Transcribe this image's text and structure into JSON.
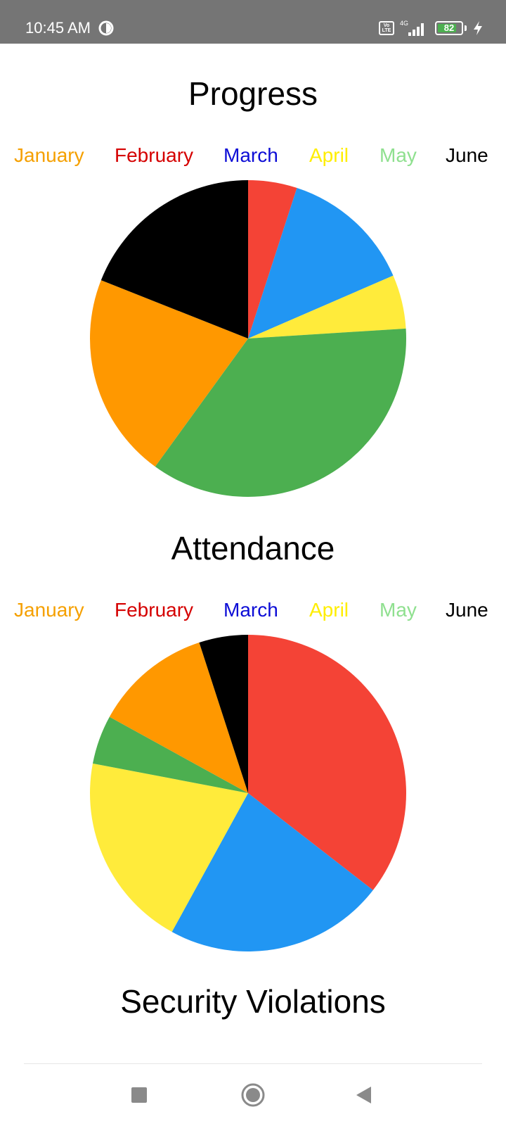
{
  "status_bar": {
    "time": "10:45 AM",
    "network": "4G",
    "volte": "Vo LTE",
    "battery_level": "82",
    "battery_fraction": 0.82,
    "icons": [
      "circle-status-icon",
      "volte-icon",
      "signal-icon",
      "battery-icon",
      "charging-bolt-icon"
    ]
  },
  "legend_colors": {
    "January": "#f5a000",
    "February": "#d50000",
    "March": "#0d0dd6",
    "April": "#ffee00",
    "May": "#8fe08f",
    "June": "#000000"
  },
  "chart_data": [
    {
      "type": "pie",
      "title": "Progress",
      "legend": [
        "January",
        "February",
        "March",
        "April",
        "May",
        "June"
      ],
      "legend_placement": "top",
      "slices": [
        {
          "value": 5,
          "color": "#f44336"
        },
        {
          "value": 13.5,
          "color": "#2196f3"
        },
        {
          "value": 5.5,
          "color": "#ffeb3b"
        },
        {
          "value": 36,
          "color": "#4caf50"
        },
        {
          "value": 21,
          "color": "#ff9800"
        },
        {
          "value": 19,
          "color": "#000000"
        }
      ]
    },
    {
      "type": "pie",
      "title": "Attendance",
      "legend": [
        "January",
        "February",
        "March",
        "April",
        "May",
        "June"
      ],
      "legend_placement": "top",
      "slices": [
        {
          "value": 35.5,
          "color": "#f44336"
        },
        {
          "value": 22.5,
          "color": "#2196f3"
        },
        {
          "value": 20,
          "color": "#ffeb3b"
        },
        {
          "value": 5,
          "color": "#4caf50"
        },
        {
          "value": 12,
          "color": "#ff9800"
        },
        {
          "value": 5,
          "color": "#000000"
        }
      ]
    },
    {
      "type": "pie",
      "title": "Security Violations"
    }
  ],
  "nav": {
    "icons": [
      "recents-square-icon",
      "home-circle-icon",
      "back-triangle-icon"
    ]
  }
}
